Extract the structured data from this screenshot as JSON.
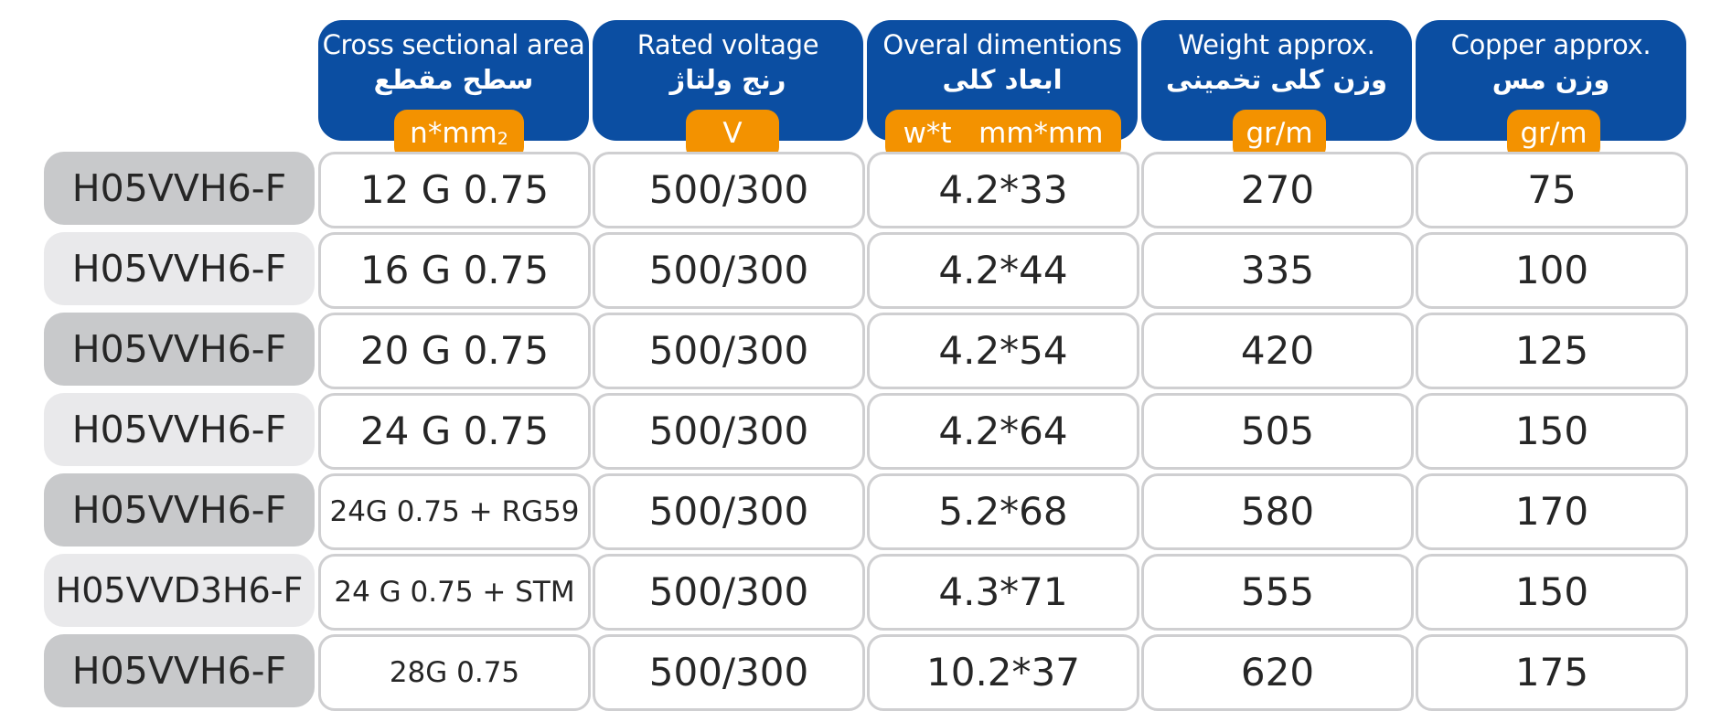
{
  "headers": [
    {
      "en": "Cross sectional area",
      "fa": "سطح مقطع",
      "unit": "n*mm",
      "unit_sup": "2"
    },
    {
      "en": "Rated voltage",
      "fa": "رنج ولتاژ",
      "unit": "V",
      "unit_sup": ""
    },
    {
      "en": "Overal dimentions",
      "fa": "ابعاد کلی",
      "unit": "w*t   mm*mm",
      "unit_sup": ""
    },
    {
      "en": "Weight approx.",
      "fa": "وزن کلی تخمینی",
      "unit": "gr/m",
      "unit_sup": ""
    },
    {
      "en": "Copper approx.",
      "fa": "وزن مس",
      "unit": "gr/m",
      "unit_sup": ""
    }
  ],
  "rows": [
    {
      "type": "H05VVH6-F",
      "cells": [
        "12 G 0.75",
        "500/300",
        "4.2*33",
        "270",
        "75"
      ]
    },
    {
      "type": "H05VVH6-F",
      "cells": [
        "16 G 0.75",
        "500/300",
        "4.2*44",
        "335",
        "100"
      ]
    },
    {
      "type": "H05VVH6-F",
      "cells": [
        "20 G 0.75",
        "500/300",
        "4.2*54",
        "420",
        "125"
      ]
    },
    {
      "type": "H05VVH6-F",
      "cells": [
        "24 G 0.75",
        "500/300",
        "4.2*64",
        "505",
        "150"
      ]
    },
    {
      "type": "H05VVH6-F",
      "cells": [
        "24G 0.75 + RG59",
        "500/300",
        "5.2*68",
        "580",
        "170"
      ]
    },
    {
      "type": "H05VVD3H6-F",
      "cells": [
        "24 G 0.75 + STM",
        "500/300",
        "4.3*71",
        "555",
        "150"
      ]
    },
    {
      "type": "H05VVH6-F",
      "cells": [
        "28G 0.75",
        "500/300",
        "10.2*37",
        "620",
        "175"
      ]
    }
  ],
  "colors": {
    "header_blue": "#0b4ea2",
    "unit_orange": "#f39200",
    "label_dark": "#c8c9cb",
    "label_light": "#e9e9eb",
    "cell_border": "#cfcfd1"
  }
}
